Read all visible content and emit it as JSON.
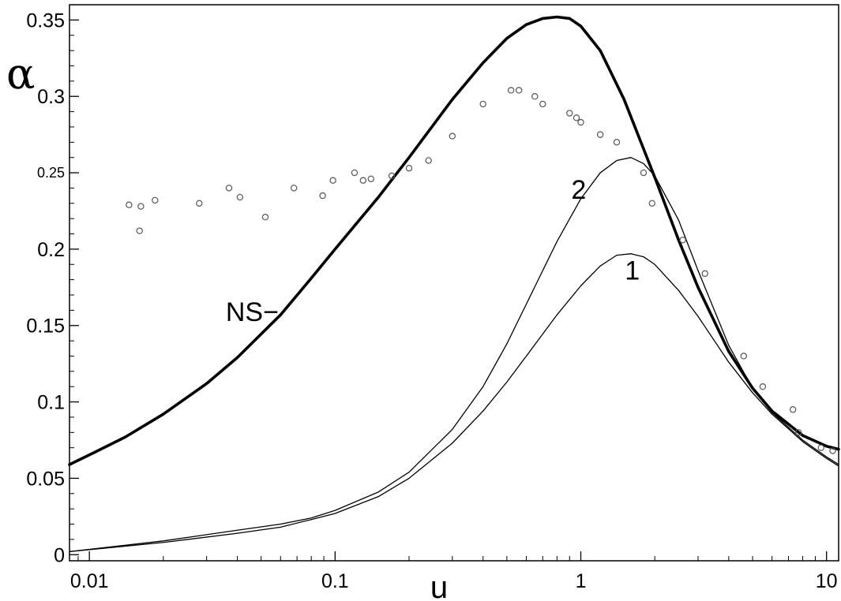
{
  "chart_data": {
    "type": "line",
    "title": "",
    "xlabel": "u",
    "ylabel": "α",
    "x_scale": "log",
    "xlim": [
      0.0083,
      11.2
    ],
    "ylim": [
      -0.004,
      0.36
    ],
    "grid": false,
    "x_ticks": [
      {
        "value": 0.01,
        "label": "0.01"
      },
      {
        "value": 0.1,
        "label": "0.1"
      },
      {
        "value": 1,
        "label": "1"
      },
      {
        "value": 10,
        "label": "10"
      }
    ],
    "y_ticks": [
      {
        "value": 0,
        "label": "0",
        "size": "large"
      },
      {
        "value": 0.05,
        "label": "0.05",
        "size": "large"
      },
      {
        "value": 0.1,
        "label": "0.1",
        "size": "large"
      },
      {
        "value": 0.15,
        "label": "0.15",
        "size": "large"
      },
      {
        "value": 0.2,
        "label": "0.2",
        "size": "large"
      },
      {
        "value": 0.25,
        "label": "0.25",
        "size": "small"
      },
      {
        "value": 0.3,
        "label": "0.3",
        "size": "large"
      },
      {
        "value": 0.35,
        "label": "0.35",
        "size": "large"
      }
    ],
    "series": [
      {
        "name": "NS−",
        "style": "thick",
        "color": "#000000",
        "x": [
          0.0083,
          0.0105,
          0.014,
          0.02,
          0.03,
          0.04,
          0.06,
          0.08,
          0.1,
          0.15,
          0.2,
          0.3,
          0.4,
          0.5,
          0.6,
          0.7,
          0.8,
          0.9,
          1.0,
          1.2,
          1.5,
          2.0,
          2.5,
          3.0,
          4.0,
          5.0,
          6.0,
          8.0,
          10.0,
          11.2
        ],
        "y": [
          0.059,
          0.067,
          0.077,
          0.092,
          0.112,
          0.129,
          0.157,
          0.181,
          0.2,
          0.234,
          0.26,
          0.298,
          0.322,
          0.338,
          0.347,
          0.351,
          0.352,
          0.351,
          0.346,
          0.33,
          0.298,
          0.247,
          0.206,
          0.175,
          0.133,
          0.109,
          0.094,
          0.078,
          0.071,
          0.069
        ]
      },
      {
        "name": "2",
        "style": "thin",
        "color": "#000000",
        "x": [
          0.0083,
          0.02,
          0.04,
          0.06,
          0.08,
          0.1,
          0.15,
          0.2,
          0.3,
          0.4,
          0.5,
          0.6,
          0.7,
          0.8,
          1.0,
          1.2,
          1.4,
          1.6,
          1.8,
          2.0,
          2.5,
          3.0,
          4.0,
          5.0,
          6.0,
          8.0,
          10.0,
          11.2
        ],
        "y": [
          0.002,
          0.009,
          0.016,
          0.02,
          0.024,
          0.029,
          0.041,
          0.054,
          0.082,
          0.11,
          0.138,
          0.164,
          0.186,
          0.205,
          0.233,
          0.25,
          0.258,
          0.26,
          0.256,
          0.248,
          0.219,
          0.186,
          0.137,
          0.109,
          0.093,
          0.075,
          0.064,
          0.059
        ]
      },
      {
        "name": "1",
        "style": "thin",
        "color": "#000000",
        "x": [
          0.0083,
          0.02,
          0.04,
          0.06,
          0.08,
          0.1,
          0.15,
          0.2,
          0.3,
          0.4,
          0.5,
          0.6,
          0.8,
          1.0,
          1.2,
          1.4,
          1.6,
          1.8,
          2.0,
          2.5,
          3.0,
          4.0,
          5.0,
          6.0,
          8.0,
          10.0,
          11.2
        ],
        "y": [
          0.002,
          0.008,
          0.014,
          0.018,
          0.023,
          0.027,
          0.038,
          0.05,
          0.073,
          0.094,
          0.113,
          0.13,
          0.157,
          0.176,
          0.189,
          0.196,
          0.197,
          0.195,
          0.19,
          0.173,
          0.156,
          0.126,
          0.106,
          0.092,
          0.074,
          0.063,
          0.058
        ]
      },
      {
        "name": "",
        "style": "markers",
        "color": "#555555",
        "x": [
          0.0145,
          0.016,
          0.0162,
          0.0185,
          0.028,
          0.037,
          0.041,
          0.052,
          0.068,
          0.089,
          0.098,
          0.12,
          0.13,
          0.14,
          0.17,
          0.2,
          0.24,
          0.3,
          0.4,
          0.52,
          0.56,
          0.65,
          0.7,
          0.9,
          0.96,
          1.0,
          1.2,
          1.4,
          1.8,
          1.95,
          2.6,
          3.2,
          4.6,
          5.5,
          7.3,
          7.7,
          9.5,
          10.6
        ],
        "y": [
          0.229,
          0.212,
          0.228,
          0.232,
          0.23,
          0.24,
          0.234,
          0.221,
          0.24,
          0.235,
          0.245,
          0.25,
          0.245,
          0.246,
          0.248,
          0.253,
          0.258,
          0.274,
          0.295,
          0.304,
          0.304,
          0.3,
          0.295,
          0.289,
          0.286,
          0.283,
          0.275,
          0.27,
          0.25,
          0.23,
          0.206,
          0.184,
          0.13,
          0.11,
          0.095,
          0.08,
          0.07,
          0.068
        ]
      }
    ],
    "annotations": [
      {
        "text": "NS−",
        "x": 0.046,
        "y": 0.153
      },
      {
        "text": "2",
        "x": 0.98,
        "y": 0.233
      },
      {
        "text": "1",
        "x": 1.62,
        "y": 0.18
      }
    ]
  }
}
